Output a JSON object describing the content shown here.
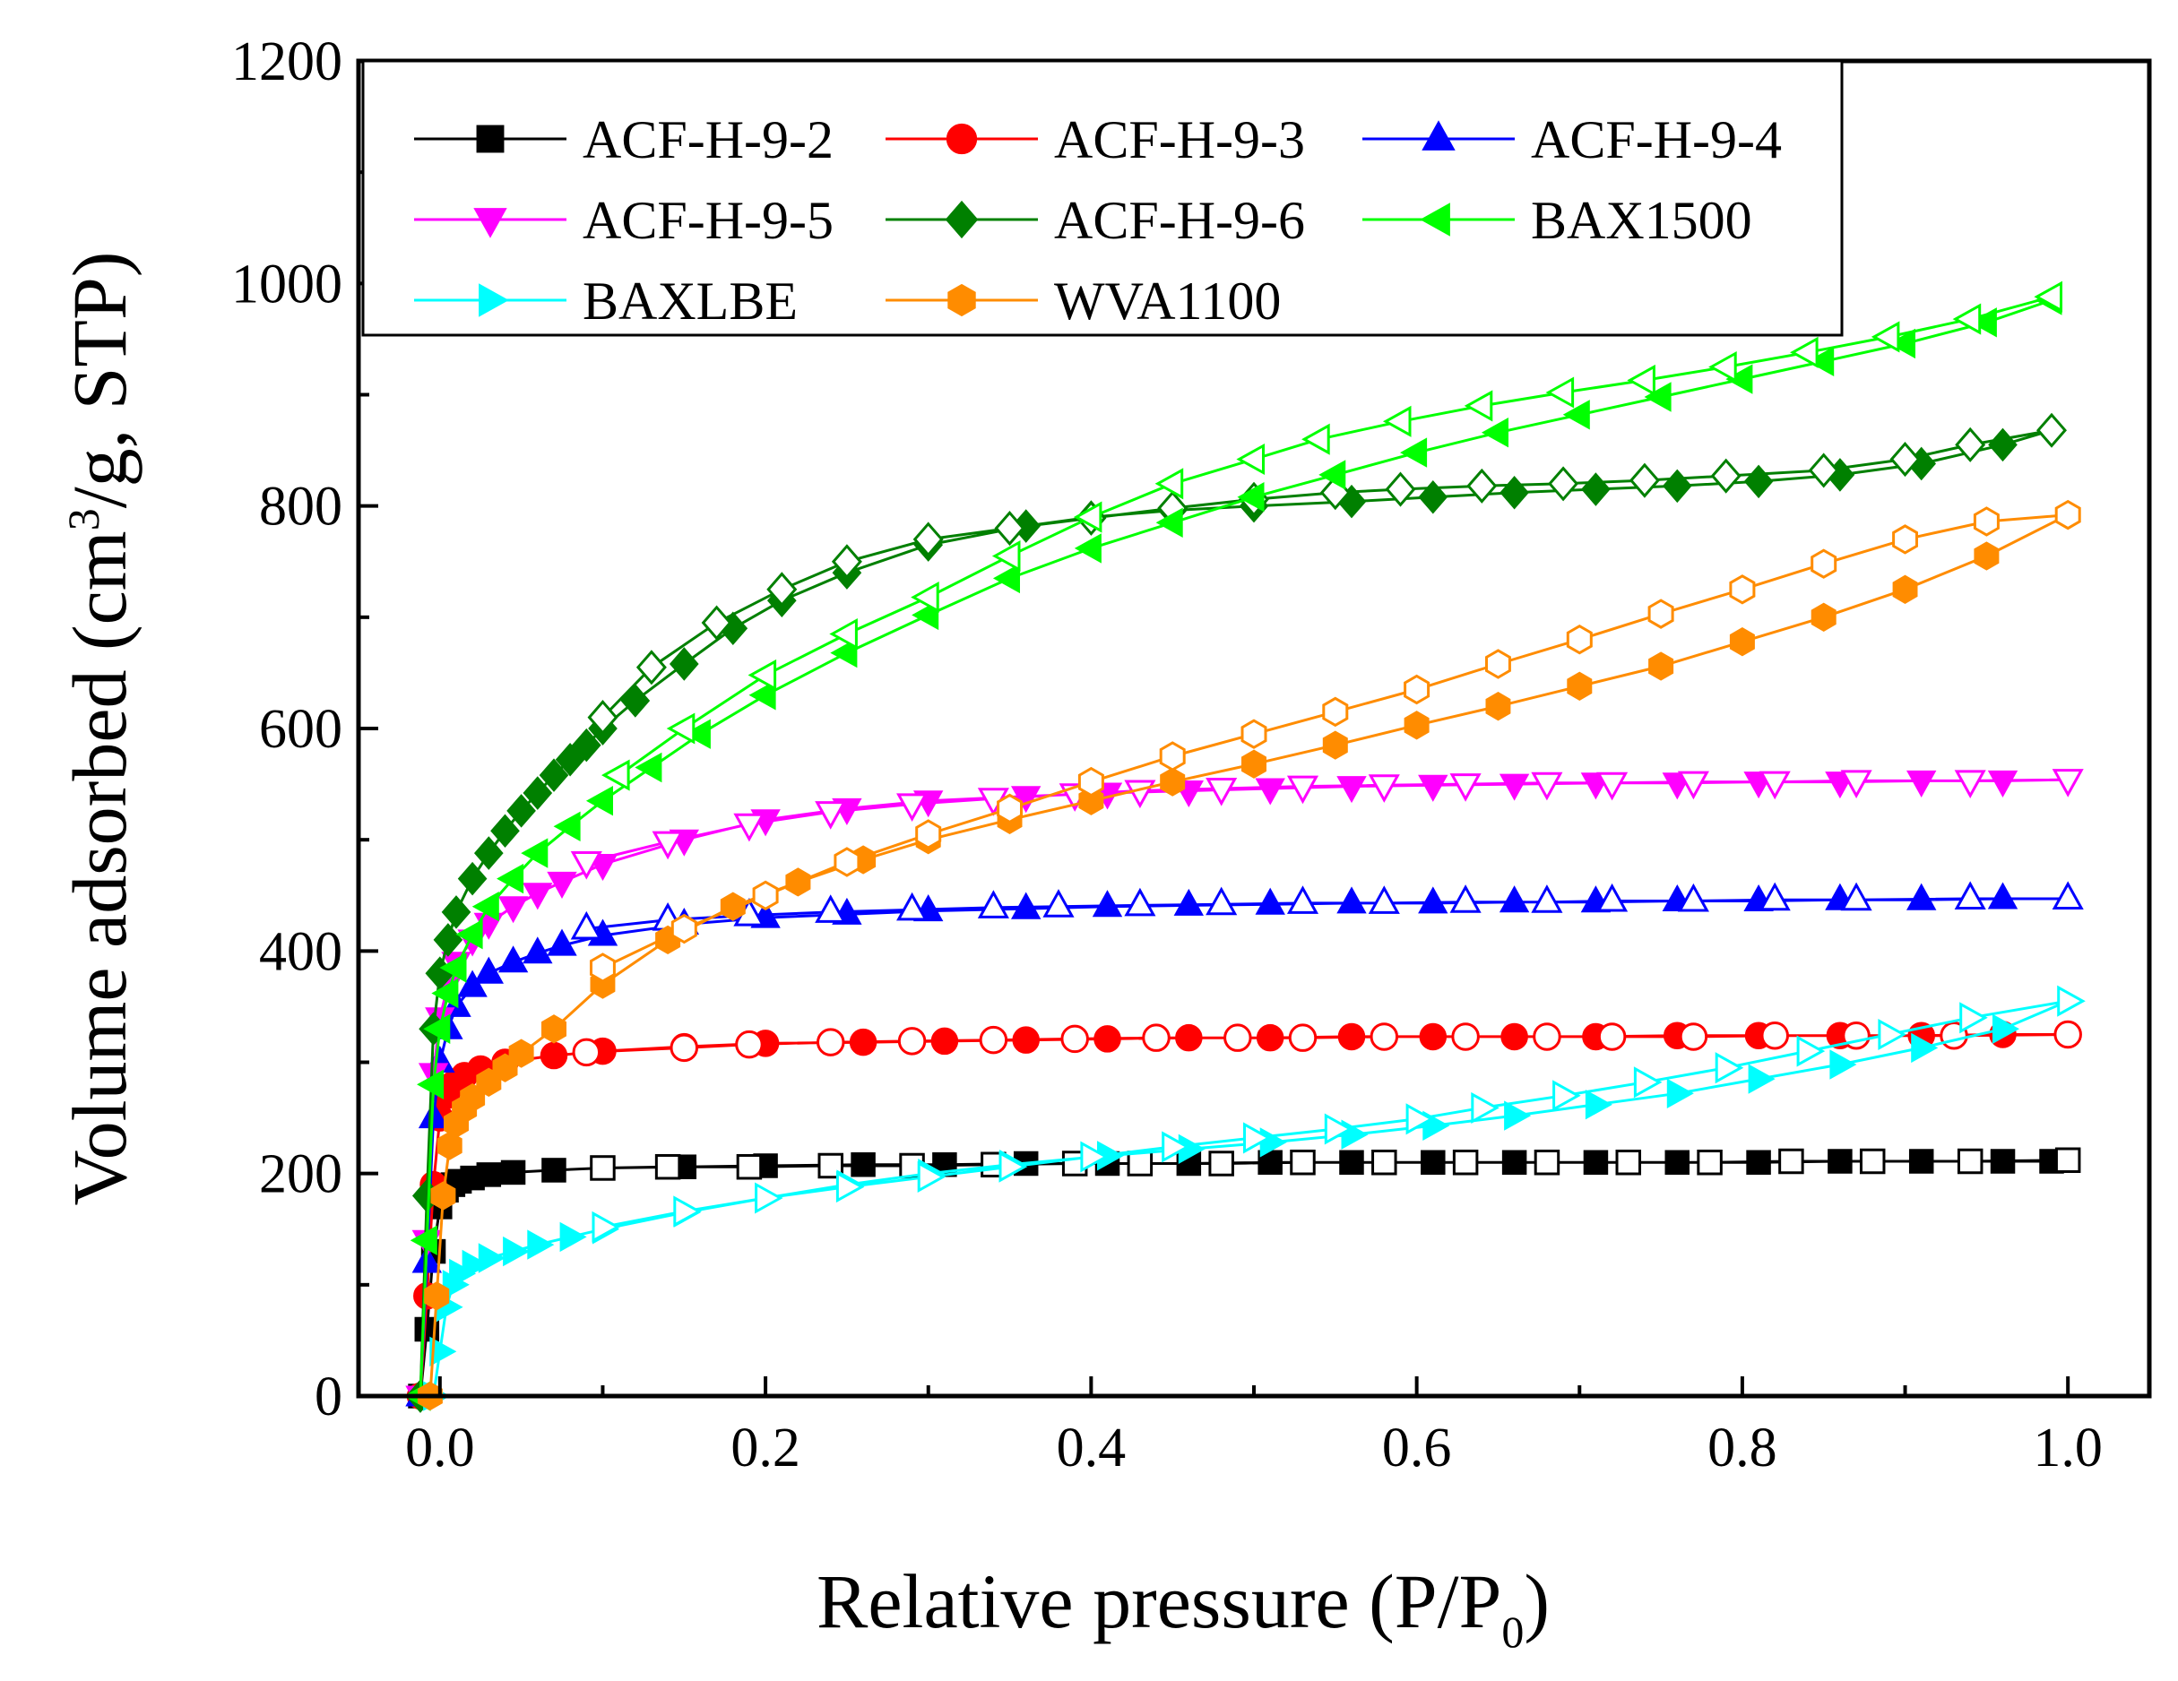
{
  "chart_data": {
    "type": "line",
    "title": "",
    "xlabel": "Relative pressure (P/P0)",
    "xlabel_parts": {
      "main": "Relative pressure (P/P",
      "sub": "0",
      "end": ")"
    },
    "ylabel": "Volume adsorbed (cm3/g, STP)",
    "ylabel_parts": {
      "main": "Volume adsorbed (cm",
      "sup": "3",
      "end": "/g, STP)"
    },
    "xlim": [
      -0.05,
      1.05
    ],
    "ylim": [
      0,
      1200
    ],
    "xticks": [
      0.0,
      0.2,
      0.4,
      0.6,
      0.8,
      1.0
    ],
    "xtick_labels": [
      "0.0",
      "0.2",
      "0.4",
      "0.6",
      "0.8",
      "1.0"
    ],
    "yticks": [
      0,
      200,
      400,
      600,
      800,
      1000,
      1200
    ],
    "ytick_labels": [
      "0",
      "200",
      "400",
      "600",
      "800",
      "1000",
      "1200"
    ],
    "legend_position": "top-left",
    "series": [
      {
        "name": "ACF-H-9-2",
        "color": "#000000",
        "marker": "square",
        "adsorption": {
          "x": [
            -0.012,
            -0.008,
            -0.004,
            0.0,
            0.004,
            0.008,
            0.012,
            0.02,
            0.03,
            0.045,
            0.07,
            0.1,
            0.15,
            0.2,
            0.26,
            0.31,
            0.36,
            0.41,
            0.46,
            0.51,
            0.56,
            0.61,
            0.66,
            0.71,
            0.76,
            0.81,
            0.86,
            0.91,
            0.96,
            0.99,
            1.0
          ],
          "y": [
            0,
            60,
            130,
            170,
            185,
            190,
            193,
            196,
            199,
            201,
            203,
            205,
            206,
            207,
            208,
            208,
            209,
            209,
            209,
            210,
            210,
            210,
            210,
            210,
            210,
            210,
            211,
            211,
            211,
            211,
            212
          ]
        },
        "desorption": {
          "x": [
            1.0,
            0.94,
            0.88,
            0.83,
            0.78,
            0.73,
            0.68,
            0.63,
            0.58,
            0.53,
            0.48,
            0.43,
            0.39,
            0.34,
            0.29,
            0.24,
            0.19,
            0.14,
            0.1
          ],
          "y": [
            212,
            211,
            211,
            211,
            210,
            210,
            210,
            210,
            210,
            210,
            209,
            209,
            209,
            208,
            207,
            207,
            206,
            206,
            205
          ]
        }
      },
      {
        "name": "ACF-H-9-3",
        "color": "#ff0000",
        "marker": "circle",
        "adsorption": {
          "x": [
            -0.012,
            -0.008,
            -0.004,
            0.0,
            0.004,
            0.008,
            0.015,
            0.025,
            0.04,
            0.07,
            0.1,
            0.15,
            0.2,
            0.26,
            0.31,
            0.36,
            0.41,
            0.46,
            0.51,
            0.56,
            0.61,
            0.66,
            0.71,
            0.76,
            0.81,
            0.86,
            0.91,
            0.96,
            1.0
          ],
          "y": [
            0,
            90,
            190,
            250,
            270,
            280,
            288,
            294,
            300,
            306,
            310,
            314,
            317,
            318,
            319,
            320,
            321,
            322,
            322,
            323,
            323,
            323,
            323,
            324,
            324,
            324,
            324,
            325,
            325
          ]
        },
        "desorption": {
          "x": [
            1.0,
            0.93,
            0.87,
            0.82,
            0.77,
            0.72,
            0.68,
            0.63,
            0.58,
            0.53,
            0.49,
            0.44,
            0.39,
            0.34,
            0.29,
            0.24,
            0.19,
            0.15,
            0.09
          ],
          "y": [
            325,
            324,
            324,
            324,
            323,
            323,
            323,
            323,
            323,
            322,
            322,
            322,
            321,
            320,
            319,
            318,
            316,
            313,
            309
          ]
        }
      },
      {
        "name": "ACF-H-9-4",
        "color": "#0000ff",
        "marker": "triangle-up",
        "adsorption": {
          "x": [
            -0.012,
            -0.008,
            -0.004,
            0.0,
            0.005,
            0.01,
            0.02,
            0.03,
            0.045,
            0.06,
            0.075,
            0.1,
            0.15,
            0.2,
            0.25,
            0.3,
            0.36,
            0.41,
            0.46,
            0.51,
            0.56,
            0.61,
            0.66,
            0.71,
            0.76,
            0.81,
            0.86,
            0.91,
            0.96,
            1.0
          ],
          "y": [
            0,
            120,
            250,
            300,
            330,
            350,
            368,
            380,
            390,
            398,
            405,
            414,
            424,
            430,
            433,
            436,
            438,
            440,
            441,
            442,
            443,
            443,
            444,
            444,
            445,
            445,
            446,
            446,
            447,
            447
          ]
        },
        "desorption": {
          "x": [
            1.0,
            0.94,
            0.87,
            0.82,
            0.77,
            0.72,
            0.68,
            0.63,
            0.58,
            0.53,
            0.48,
            0.43,
            0.38,
            0.34,
            0.29,
            0.24,
            0.19,
            0.14,
            0.09
          ],
          "y": [
            447,
            447,
            446,
            446,
            445,
            445,
            444,
            444,
            443,
            443,
            442,
            441,
            440,
            439,
            437,
            435,
            432,
            428,
            420
          ]
        }
      },
      {
        "name": "ACF-H-9-5",
        "color": "#ff00ff",
        "marker": "triangle-down",
        "adsorption": {
          "x": [
            -0.012,
            -0.008,
            -0.004,
            0.0,
            0.005,
            0.01,
            0.02,
            0.03,
            0.045,
            0.06,
            0.075,
            0.1,
            0.15,
            0.2,
            0.25,
            0.3,
            0.36,
            0.41,
            0.46,
            0.51,
            0.56,
            0.61,
            0.66,
            0.71,
            0.76,
            0.81,
            0.86,
            0.91,
            0.96,
            1.0
          ],
          "y": [
            0,
            140,
            290,
            340,
            370,
            390,
            410,
            425,
            440,
            452,
            462,
            478,
            500,
            518,
            528,
            535,
            539,
            542,
            544,
            546,
            548,
            549,
            550,
            551,
            551,
            552,
            552,
            553,
            553,
            554
          ]
        },
        "desorption": {
          "x": [
            1.0,
            0.94,
            0.87,
            0.82,
            0.77,
            0.72,
            0.68,
            0.63,
            0.58,
            0.53,
            0.48,
            0.43,
            0.39,
            0.34,
            0.29,
            0.24,
            0.19,
            0.14,
            0.09
          ],
          "y": [
            554,
            553,
            553,
            552,
            552,
            551,
            551,
            550,
            549,
            548,
            546,
            544,
            541,
            537,
            532,
            525,
            514,
            498,
            480
          ]
        }
      },
      {
        "name": "ACF-H-9-6",
        "color": "#008000",
        "marker": "diamond",
        "adsorption": {
          "x": [
            -0.012,
            -0.008,
            -0.004,
            0.0,
            0.005,
            0.01,
            0.02,
            0.03,
            0.04,
            0.05,
            0.06,
            0.07,
            0.08,
            0.09,
            0.1,
            0.12,
            0.15,
            0.18,
            0.21,
            0.25,
            0.3,
            0.36,
            0.4,
            0.45,
            0.5,
            0.56,
            0.61,
            0.66,
            0.71,
            0.76,
            0.81,
            0.86,
            0.91,
            0.96,
            0.99
          ],
          "y": [
            0,
            180,
            330,
            380,
            410,
            435,
            465,
            488,
            508,
            526,
            542,
            558,
            572,
            585,
            600,
            625,
            658,
            690,
            715,
            740,
            765,
            782,
            790,
            796,
            800,
            804,
            808,
            812,
            815,
            818,
            822,
            828,
            838,
            855,
            868
          ]
        },
        "desorption": {
          "x": [
            0.99,
            0.94,
            0.9,
            0.85,
            0.79,
            0.74,
            0.69,
            0.64,
            0.59,
            0.55,
            0.5,
            0.45,
            0.4,
            0.35,
            0.3,
            0.25,
            0.21,
            0.17,
            0.13,
            0.1
          ],
          "y": [
            868,
            855,
            842,
            832,
            827,
            823,
            820,
            818,
            815,
            812,
            806,
            798,
            789,
            780,
            770,
            750,
            725,
            695,
            655,
            610
          ]
        }
      },
      {
        "name": "BAX1500",
        "color": "#00ff00",
        "marker": "triangle-left",
        "adsorption": {
          "x": [
            -0.012,
            -0.008,
            -0.004,
            0.0,
            0.005,
            0.01,
            0.02,
            0.03,
            0.045,
            0.06,
            0.08,
            0.1,
            0.13,
            0.16,
            0.2,
            0.25,
            0.3,
            0.35,
            0.4,
            0.45,
            0.5,
            0.55,
            0.6,
            0.65,
            0.7,
            0.75,
            0.8,
            0.85,
            0.9,
            0.95,
            0.99
          ],
          "y": [
            0,
            140,
            280,
            330,
            362,
            385,
            415,
            440,
            465,
            488,
            512,
            535,
            565,
            595,
            630,
            668,
            702,
            735,
            762,
            785,
            808,
            828,
            848,
            866,
            882,
            898,
            914,
            930,
            946,
            965,
            985
          ]
        },
        "desorption": {
          "x": [
            0.99,
            0.94,
            0.89,
            0.84,
            0.79,
            0.74,
            0.69,
            0.64,
            0.59,
            0.54,
            0.5,
            0.45,
            0.4,
            0.35,
            0.3,
            0.25,
            0.2,
            0.15,
            0.11
          ],
          "y": [
            988,
            968,
            952,
            938,
            925,
            913,
            902,
            890,
            876,
            860,
            842,
            820,
            790,
            755,
            718,
            685,
            648,
            600,
            558
          ]
        }
      },
      {
        "name": "BAXLBE",
        "color": "#00ffff",
        "marker": "triangle-right",
        "adsorption": {
          "x": [
            -0.004,
            0.0,
            0.004,
            0.008,
            0.012,
            0.02,
            0.03,
            0.045,
            0.06,
            0.08,
            0.1,
            0.15,
            0.2,
            0.25,
            0.3,
            0.35,
            0.41,
            0.46,
            0.51,
            0.56,
            0.61,
            0.66,
            0.71,
            0.76,
            0.81,
            0.86,
            0.91,
            0.96,
            1.0
          ],
          "y": [
            0,
            40,
            80,
            100,
            110,
            118,
            124,
            130,
            136,
            143,
            150,
            165,
            178,
            190,
            200,
            208,
            216,
            222,
            228,
            235,
            243,
            252,
            262,
            272,
            285,
            298,
            313,
            330,
            355
          ]
        },
        "desorption": {
          "x": [
            1.0,
            0.94,
            0.89,
            0.84,
            0.79,
            0.74,
            0.69,
            0.64,
            0.6,
            0.55,
            0.5,
            0.45,
            0.4,
            0.35,
            0.3,
            0.25,
            0.2,
            0.15,
            0.1
          ],
          "y": [
            355,
            340,
            325,
            310,
            295,
            282,
            270,
            259,
            249,
            240,
            232,
            224,
            215,
            206,
            197,
            188,
            178,
            166,
            152
          ]
        }
      },
      {
        "name": "WVA1100",
        "color": "#ff8c00",
        "marker": "hexagon",
        "adsorption": {
          "x": [
            -0.006,
            -0.002,
            0.002,
            0.006,
            0.01,
            0.015,
            0.02,
            0.03,
            0.04,
            0.05,
            0.07,
            0.1,
            0.14,
            0.18,
            0.22,
            0.26,
            0.3,
            0.35,
            0.4,
            0.45,
            0.5,
            0.55,
            0.6,
            0.65,
            0.7,
            0.75,
            0.8,
            0.85,
            0.9,
            0.95,
            1.0
          ],
          "y": [
            0,
            90,
            180,
            225,
            245,
            258,
            268,
            282,
            295,
            308,
            330,
            370,
            410,
            440,
            462,
            482,
            500,
            518,
            535,
            552,
            568,
            585,
            603,
            620,
            638,
            656,
            678,
            700,
            725,
            755,
            792
          ]
        },
        "desorption": {
          "x": [
            1.0,
            0.95,
            0.9,
            0.85,
            0.8,
            0.75,
            0.7,
            0.65,
            0.6,
            0.55,
            0.5,
            0.45,
            0.4,
            0.35,
            0.3,
            0.25,
            0.2,
            0.15,
            0.1
          ],
          "y": [
            792,
            786,
            770,
            748,
            725,
            703,
            680,
            658,
            635,
            615,
            595,
            575,
            552,
            528,
            505,
            480,
            450,
            420,
            385
          ]
        }
      }
    ]
  }
}
